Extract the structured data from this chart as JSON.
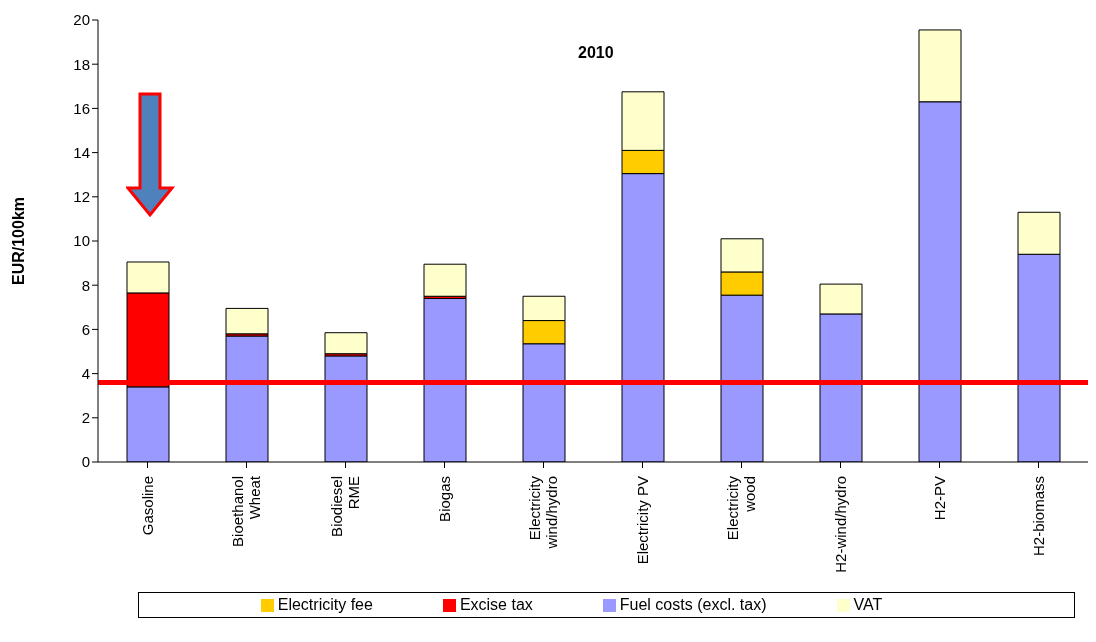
{
  "chart_data": {
    "type": "bar",
    "title": "2010",
    "ylabel": "EUR/100km",
    "categories": [
      "Gasoline",
      "Bioethanol\nWheat",
      "Biodiesel\nRME",
      "Biogas",
      "Electricity\nwind/hydro",
      "Electricity PV",
      "Electricity\nwood",
      "H2-wind/hydro",
      "H2-PV",
      "H2-biomass"
    ],
    "stacked": true,
    "series": [
      {
        "name": "Fuel costs (excl. tax)",
        "color": "#9999ff",
        "values": [
          3.4,
          5.7,
          4.8,
          7.4,
          5.35,
          13.05,
          7.55,
          6.7,
          16.3,
          9.4
        ]
      },
      {
        "name": "Excise tax",
        "color": "#ff0000",
        "values": [
          4.25,
          0.1,
          0.1,
          0.1,
          null,
          null,
          null,
          null,
          null,
          null
        ]
      },
      {
        "name": "Electricity fee",
        "color": "#ffcc00",
        "values": [
          null,
          null,
          null,
          null,
          1.05,
          1.05,
          1.05,
          null,
          null,
          null
        ]
      },
      {
        "name": "VAT",
        "color": "#ffffcc",
        "values": [
          1.4,
          1.15,
          0.95,
          1.45,
          1.1,
          2.65,
          1.5,
          1.35,
          3.25,
          1.9
        ]
      }
    ],
    "ylim": [
      0,
      20
    ],
    "yticks": [
      0,
      2,
      4,
      6,
      8,
      10,
      12,
      14,
      16,
      18,
      20
    ],
    "ref_lines": [
      {
        "axis": "y",
        "value": 3.6,
        "color": "#ff0000"
      }
    ],
    "grid": false,
    "legend": "bottom"
  }
}
